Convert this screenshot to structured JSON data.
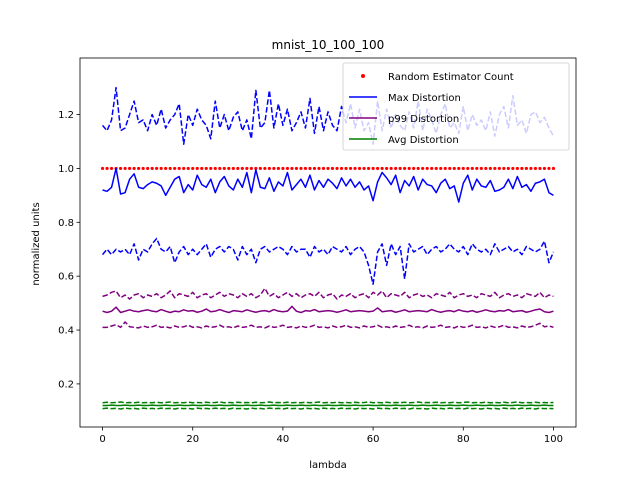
{
  "chart_data": {
    "type": "line",
    "title": "mnist_10_100_100",
    "xlabel": "lambda",
    "ylabel": "normalized units",
    "xlim": [
      -5,
      105
    ],
    "ylim": [
      0.04,
      1.41
    ],
    "xticks": [
      0,
      20,
      40,
      60,
      80,
      100
    ],
    "yticks": [
      0.2,
      0.4,
      0.6,
      0.8,
      1.0,
      1.2
    ],
    "xtick_labels": [
      "0",
      "20",
      "40",
      "60",
      "80",
      "100"
    ],
    "ytick_labels": [
      "0.2",
      "0.4",
      "0.6",
      "0.8",
      "1.0",
      "1.2"
    ],
    "legend_position": "top-right",
    "legend": [
      {
        "label": "Random Estimator Count",
        "color": "#ff0000",
        "marker": "dot"
      },
      {
        "label": "Max Distortion",
        "color": "#0000ff",
        "marker": "line"
      },
      {
        "label": "p99 Distortion",
        "color": "#800080",
        "marker": "line"
      },
      {
        "label": "Avg Distortion",
        "color": "#008000",
        "marker": "line"
      }
    ],
    "x": [
      0,
      1,
      2,
      3,
      4,
      5,
      6,
      7,
      8,
      9,
      10,
      11,
      12,
      13,
      14,
      15,
      16,
      17,
      18,
      19,
      20,
      21,
      22,
      23,
      24,
      25,
      26,
      27,
      28,
      29,
      30,
      31,
      32,
      33,
      34,
      35,
      36,
      37,
      38,
      39,
      40,
      41,
      42,
      43,
      44,
      45,
      46,
      47,
      48,
      49,
      50,
      51,
      52,
      53,
      54,
      55,
      56,
      57,
      58,
      59,
      60,
      61,
      62,
      63,
      64,
      65,
      66,
      67,
      68,
      69,
      70,
      71,
      72,
      73,
      74,
      75,
      76,
      77,
      78,
      79,
      80,
      81,
      82,
      83,
      84,
      85,
      86,
      87,
      88,
      89,
      90,
      91,
      92,
      93,
      94,
      95,
      96,
      97,
      98,
      99,
      100
    ],
    "series": [
      {
        "name": "Random Estimator Count",
        "color": "#ff0000",
        "style": "dots",
        "values": [
          1.0,
          1.0,
          1.0,
          1.0,
          1.0,
          1.0,
          1.0,
          1.0,
          1.0,
          1.0,
          1.0,
          1.0,
          1.0,
          1.0,
          1.0,
          1.0,
          1.0,
          1.0,
          1.0,
          1.0,
          1.0,
          1.0,
          1.0,
          1.0,
          1.0,
          1.0,
          1.0,
          1.0,
          1.0,
          1.0,
          1.0,
          1.0,
          1.0,
          1.0,
          1.0,
          1.0,
          1.0,
          1.0,
          1.0,
          1.0,
          1.0,
          1.0,
          1.0,
          1.0,
          1.0,
          1.0,
          1.0,
          1.0,
          1.0,
          1.0,
          1.0,
          1.0,
          1.0,
          1.0,
          1.0,
          1.0,
          1.0,
          1.0,
          1.0,
          1.0,
          1.0,
          1.0,
          1.0,
          1.0,
          1.0,
          1.0,
          1.0,
          1.0,
          1.0,
          1.0,
          1.0,
          1.0,
          1.0,
          1.0,
          1.0,
          1.0,
          1.0,
          1.0,
          1.0,
          1.0,
          1.0,
          1.0,
          1.0,
          1.0,
          1.0,
          1.0,
          1.0,
          1.0,
          1.0,
          1.0,
          1.0,
          1.0,
          1.0,
          1.0,
          1.0,
          1.0,
          1.0,
          1.0,
          1.0,
          1.0,
          1.0
        ]
      },
      {
        "name": "Max Distortion",
        "color": "#0000ff",
        "style": "solid",
        "values": [
          0.92,
          0.915,
          0.93,
          1.0,
          0.905,
          0.91,
          0.96,
          0.98,
          0.93,
          0.925,
          0.94,
          0.95,
          0.945,
          0.935,
          0.9,
          0.93,
          0.96,
          0.97,
          0.91,
          0.94,
          0.92,
          0.975,
          0.94,
          0.93,
          0.96,
          0.91,
          0.95,
          0.97,
          0.935,
          0.92,
          0.96,
          0.93,
          0.985,
          0.91,
          0.995,
          0.93,
          0.925,
          0.965,
          0.915,
          0.95,
          0.935,
          0.985,
          0.92,
          0.94,
          0.96,
          0.93,
          0.975,
          0.92,
          0.955,
          0.93,
          0.96,
          0.945,
          0.925,
          0.965,
          0.935,
          0.96,
          0.93,
          0.95,
          0.92,
          0.935,
          0.88,
          0.95,
          0.985,
          0.965,
          0.94,
          0.975,
          0.91,
          0.955,
          0.935,
          0.97,
          0.92,
          0.96,
          0.94,
          0.935,
          0.91,
          0.945,
          0.96,
          0.925,
          0.935,
          0.875,
          0.945,
          0.975,
          0.92,
          0.96,
          0.935,
          0.93,
          0.955,
          0.915,
          0.92,
          0.93,
          0.96,
          0.925,
          0.97,
          0.93,
          0.94,
          0.915,
          0.945,
          0.95,
          0.96,
          0.91,
          0.9
        ]
      },
      {
        "name": "Max Distortion upper",
        "color": "#0000ff",
        "style": "dashed",
        "values": [
          1.16,
          1.14,
          1.18,
          1.3,
          1.14,
          1.15,
          1.2,
          1.25,
          1.17,
          1.18,
          1.14,
          1.2,
          1.16,
          1.22,
          1.15,
          1.18,
          1.2,
          1.24,
          1.09,
          1.2,
          1.16,
          1.22,
          1.18,
          1.16,
          1.11,
          1.25,
          1.15,
          1.2,
          1.14,
          1.19,
          1.21,
          1.14,
          1.18,
          1.11,
          1.29,
          1.15,
          1.17,
          1.29,
          1.15,
          1.24,
          1.16,
          1.22,
          1.14,
          1.17,
          1.21,
          1.15,
          1.26,
          1.13,
          1.23,
          1.14,
          1.21,
          1.16,
          1.14,
          1.23,
          1.17,
          1.24,
          1.15,
          1.22,
          1.14,
          1.17,
          1.09,
          1.25,
          1.14,
          1.22,
          1.15,
          1.2,
          1.16,
          1.14,
          1.21,
          1.15,
          1.25,
          1.14,
          1.22,
          1.18,
          1.13,
          1.2,
          1.24,
          1.15,
          1.17,
          1.13,
          1.23,
          1.14,
          1.2,
          1.16,
          1.18,
          1.14,
          1.21,
          1.12,
          1.2,
          1.23,
          1.15,
          1.27,
          1.16,
          1.18,
          1.13,
          1.2,
          1.21,
          1.17,
          1.19,
          1.15,
          1.12
        ]
      },
      {
        "name": "Max Distortion lower",
        "color": "#0000ff",
        "style": "dashed",
        "values": [
          0.68,
          0.7,
          0.68,
          0.7,
          0.69,
          0.7,
          0.68,
          0.72,
          0.66,
          0.7,
          0.69,
          0.72,
          0.74,
          0.7,
          0.69,
          0.71,
          0.65,
          0.69,
          0.71,
          0.68,
          0.7,
          0.68,
          0.7,
          0.72,
          0.67,
          0.7,
          0.71,
          0.69,
          0.71,
          0.7,
          0.66,
          0.71,
          0.68,
          0.7,
          0.65,
          0.7,
          0.71,
          0.69,
          0.7,
          0.71,
          0.7,
          0.68,
          0.71,
          0.69,
          0.7,
          0.7,
          0.67,
          0.71,
          0.69,
          0.7,
          0.68,
          0.71,
          0.7,
          0.69,
          0.71,
          0.68,
          0.7,
          0.71,
          0.69,
          0.64,
          0.57,
          0.69,
          0.72,
          0.64,
          0.72,
          0.68,
          0.71,
          0.59,
          0.72,
          0.69,
          0.7,
          0.71,
          0.68,
          0.7,
          0.71,
          0.69,
          0.7,
          0.72,
          0.7,
          0.69,
          0.71,
          0.68,
          0.72,
          0.7,
          0.69,
          0.7,
          0.68,
          0.72,
          0.69,
          0.7,
          0.71,
          0.69,
          0.7,
          0.68,
          0.71,
          0.7,
          0.69,
          0.7,
          0.73,
          0.65,
          0.69
        ]
      },
      {
        "name": "p99 Distortion",
        "color": "#800080",
        "style": "solid",
        "values": [
          0.47,
          0.465,
          0.47,
          0.485,
          0.465,
          0.47,
          0.475,
          0.47,
          0.468,
          0.472,
          0.475,
          0.47,
          0.468,
          0.476,
          0.47,
          0.465,
          0.47,
          0.468,
          0.475,
          0.47,
          0.472,
          0.466,
          0.47,
          0.478,
          0.468,
          0.47,
          0.476,
          0.47,
          0.465,
          0.472,
          0.47,
          0.468,
          0.475,
          0.47,
          0.466,
          0.47,
          0.472,
          0.468,
          0.476,
          0.47,
          0.468,
          0.47,
          0.488,
          0.47,
          0.465,
          0.472,
          0.47,
          0.476,
          0.468,
          0.47,
          0.472,
          0.47,
          0.466,
          0.47,
          0.475,
          0.468,
          0.47,
          0.472,
          0.47,
          0.468,
          0.47,
          0.482,
          0.468,
          0.47,
          0.472,
          0.466,
          0.47,
          0.475,
          0.468,
          0.47,
          0.472,
          0.47,
          0.468,
          0.476,
          0.47,
          0.466,
          0.47,
          0.472,
          0.468,
          0.475,
          0.47,
          0.468,
          0.472,
          0.466,
          0.47,
          0.475,
          0.47,
          0.468,
          0.472,
          0.47,
          0.476,
          0.468,
          0.47,
          0.472,
          0.466,
          0.47,
          0.475,
          0.478,
          0.468,
          0.465,
          0.47
        ]
      },
      {
        "name": "p99 Distortion upper",
        "color": "#800080",
        "style": "dashed",
        "values": [
          0.525,
          0.53,
          0.54,
          0.545,
          0.52,
          0.53,
          0.515,
          0.53,
          0.535,
          0.52,
          0.53,
          0.525,
          0.535,
          0.52,
          0.53,
          0.545,
          0.52,
          0.535,
          0.53,
          0.525,
          0.54,
          0.52,
          0.53,
          0.535,
          0.52,
          0.53,
          0.54,
          0.525,
          0.535,
          0.53,
          0.52,
          0.535,
          0.525,
          0.535,
          0.52,
          0.53,
          0.555,
          0.525,
          0.535,
          0.52,
          0.53,
          0.54,
          0.525,
          0.535,
          0.52,
          0.53,
          0.535,
          0.525,
          0.54,
          0.52,
          0.53,
          0.535,
          0.515,
          0.53,
          0.525,
          0.535,
          0.52,
          0.53,
          0.535,
          0.52,
          0.54,
          0.53,
          0.545,
          0.52,
          0.535,
          0.53,
          0.525,
          0.54,
          0.52,
          0.53,
          0.535,
          0.525,
          0.53,
          0.52,
          0.535,
          0.53,
          0.525,
          0.54,
          0.52,
          0.53,
          0.535,
          0.525,
          0.53,
          0.52,
          0.535,
          0.53,
          0.525,
          0.54,
          0.52,
          0.53,
          0.535,
          0.525,
          0.53,
          0.52,
          0.535,
          0.53,
          0.525,
          0.54,
          0.52,
          0.53,
          0.525
        ]
      },
      {
        "name": "p99 Distortion lower",
        "color": "#800080",
        "style": "dashed",
        "values": [
          0.41,
          0.41,
          0.415,
          0.42,
          0.41,
          0.43,
          0.412,
          0.41,
          0.408,
          0.415,
          0.41,
          0.412,
          0.418,
          0.41,
          0.412,
          0.408,
          0.415,
          0.41,
          0.412,
          0.418,
          0.41,
          0.412,
          0.408,
          0.415,
          0.41,
          0.412,
          0.418,
          0.41,
          0.412,
          0.408,
          0.415,
          0.41,
          0.412,
          0.418,
          0.41,
          0.412,
          0.408,
          0.415,
          0.41,
          0.412,
          0.418,
          0.41,
          0.412,
          0.408,
          0.415,
          0.41,
          0.412,
          0.418,
          0.41,
          0.412,
          0.408,
          0.415,
          0.41,
          0.412,
          0.418,
          0.41,
          0.412,
          0.408,
          0.415,
          0.41,
          0.412,
          0.418,
          0.41,
          0.412,
          0.408,
          0.415,
          0.41,
          0.412,
          0.418,
          0.41,
          0.412,
          0.408,
          0.415,
          0.41,
          0.412,
          0.418,
          0.41,
          0.412,
          0.408,
          0.415,
          0.41,
          0.412,
          0.418,
          0.41,
          0.412,
          0.408,
          0.415,
          0.41,
          0.412,
          0.418,
          0.41,
          0.412,
          0.408,
          0.415,
          0.41,
          0.412,
          0.418,
          0.425,
          0.412,
          0.415,
          0.41
        ]
      },
      {
        "name": "Avg Distortion",
        "color": "#008000",
        "style": "solid",
        "values": [
          0.12,
          0.12,
          0.121,
          0.12,
          0.12,
          0.121,
          0.12,
          0.12,
          0.121,
          0.12,
          0.12,
          0.121,
          0.12,
          0.12,
          0.121,
          0.12,
          0.12,
          0.121,
          0.12,
          0.12,
          0.121,
          0.12,
          0.12,
          0.121,
          0.12,
          0.12,
          0.121,
          0.12,
          0.12,
          0.121,
          0.12,
          0.12,
          0.121,
          0.12,
          0.12,
          0.121,
          0.12,
          0.12,
          0.121,
          0.12,
          0.12,
          0.121,
          0.12,
          0.12,
          0.121,
          0.12,
          0.12,
          0.121,
          0.12,
          0.12,
          0.121,
          0.12,
          0.12,
          0.121,
          0.12,
          0.12,
          0.121,
          0.12,
          0.12,
          0.121,
          0.12,
          0.12,
          0.121,
          0.12,
          0.12,
          0.121,
          0.12,
          0.12,
          0.121,
          0.12,
          0.12,
          0.121,
          0.12,
          0.12,
          0.121,
          0.12,
          0.12,
          0.121,
          0.12,
          0.12,
          0.121,
          0.12,
          0.12,
          0.121,
          0.12,
          0.12,
          0.121,
          0.12,
          0.12,
          0.121,
          0.12,
          0.12,
          0.121,
          0.12,
          0.12,
          0.121,
          0.12,
          0.12,
          0.121,
          0.12,
          0.12
        ]
      },
      {
        "name": "Avg Distortion upper",
        "color": "#008000",
        "style": "dashed",
        "values": [
          0.13,
          0.132,
          0.13,
          0.131,
          0.133,
          0.13,
          0.131,
          0.13,
          0.132,
          0.13,
          0.131,
          0.13,
          0.132,
          0.13,
          0.131,
          0.133,
          0.13,
          0.131,
          0.13,
          0.132,
          0.13,
          0.131,
          0.13,
          0.132,
          0.13,
          0.131,
          0.133,
          0.13,
          0.131,
          0.13,
          0.132,
          0.13,
          0.131,
          0.13,
          0.132,
          0.13,
          0.131,
          0.133,
          0.13,
          0.131,
          0.13,
          0.132,
          0.13,
          0.131,
          0.13,
          0.132,
          0.13,
          0.131,
          0.133,
          0.13,
          0.131,
          0.13,
          0.132,
          0.13,
          0.131,
          0.13,
          0.132,
          0.13,
          0.131,
          0.133,
          0.13,
          0.131,
          0.13,
          0.132,
          0.13,
          0.131,
          0.13,
          0.132,
          0.13,
          0.131,
          0.133,
          0.13,
          0.131,
          0.13,
          0.132,
          0.13,
          0.131,
          0.13,
          0.132,
          0.13,
          0.131,
          0.133,
          0.13,
          0.131,
          0.13,
          0.132,
          0.13,
          0.131,
          0.13,
          0.132,
          0.13,
          0.131,
          0.133,
          0.13,
          0.131,
          0.13,
          0.132,
          0.13,
          0.131,
          0.13,
          0.131
        ]
      },
      {
        "name": "Avg Distortion lower",
        "color": "#008000",
        "style": "dashed",
        "values": [
          0.108,
          0.11,
          0.108,
          0.109,
          0.107,
          0.11,
          0.108,
          0.109,
          0.107,
          0.11,
          0.108,
          0.109,
          0.107,
          0.11,
          0.108,
          0.109,
          0.107,
          0.11,
          0.108,
          0.109,
          0.107,
          0.11,
          0.108,
          0.109,
          0.107,
          0.11,
          0.108,
          0.109,
          0.107,
          0.11,
          0.108,
          0.109,
          0.107,
          0.11,
          0.108,
          0.109,
          0.107,
          0.11,
          0.108,
          0.109,
          0.107,
          0.11,
          0.108,
          0.109,
          0.107,
          0.11,
          0.108,
          0.109,
          0.107,
          0.11,
          0.108,
          0.109,
          0.107,
          0.11,
          0.108,
          0.109,
          0.107,
          0.11,
          0.108,
          0.109,
          0.107,
          0.11,
          0.108,
          0.109,
          0.107,
          0.11,
          0.108,
          0.109,
          0.107,
          0.11,
          0.108,
          0.109,
          0.107,
          0.11,
          0.108,
          0.109,
          0.107,
          0.11,
          0.108,
          0.109,
          0.107,
          0.11,
          0.108,
          0.109,
          0.107,
          0.11,
          0.108,
          0.109,
          0.107,
          0.11,
          0.108,
          0.109,
          0.107,
          0.11,
          0.108,
          0.109,
          0.107,
          0.11,
          0.108,
          0.109,
          0.108
        ]
      }
    ]
  }
}
